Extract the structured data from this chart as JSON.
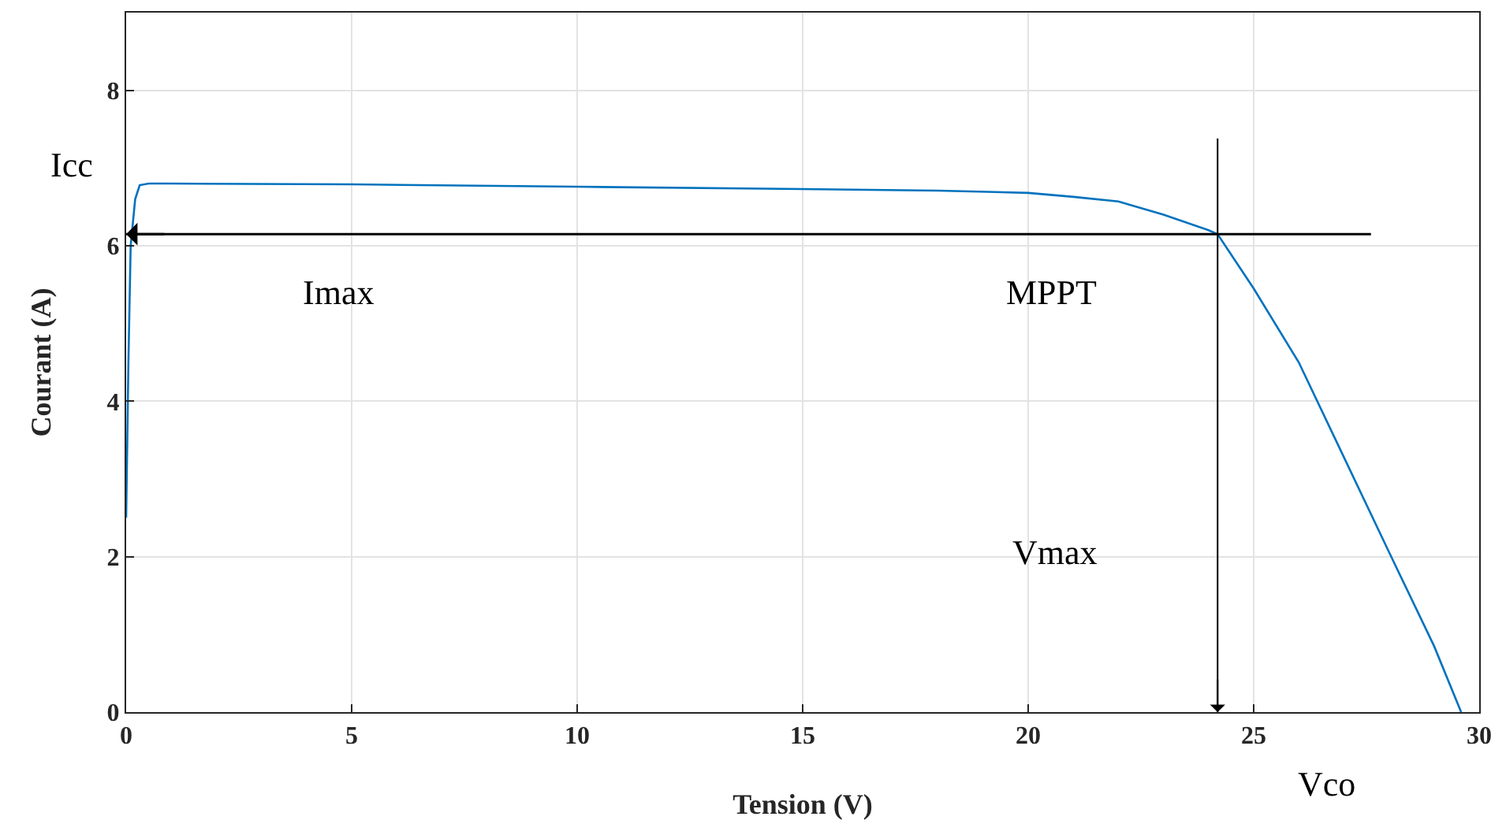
{
  "chart_data": {
    "type": "line",
    "xlabel": "Tension (V)",
    "ylabel": "Courant (A)",
    "xlim": [
      0,
      30
    ],
    "ylim": [
      0,
      9
    ],
    "xticks": [
      0,
      5,
      10,
      15,
      20,
      25,
      30
    ],
    "yticks": [
      0,
      2,
      4,
      6,
      8
    ],
    "grid": true,
    "line_style": "solid",
    "series": [
      {
        "color": "#0072bd",
        "x": [
          0,
          0.05,
          0.1,
          0.2,
          0.3,
          0.5,
          1,
          5,
          10,
          15,
          18,
          20,
          21,
          22,
          23,
          24,
          24.2,
          25,
          26,
          27,
          28,
          29,
          29.6
        ],
        "values": [
          2.5,
          4.5,
          6.0,
          6.6,
          6.78,
          6.8,
          6.8,
          6.79,
          6.76,
          6.73,
          6.71,
          6.68,
          6.63,
          6.57,
          6.4,
          6.2,
          6.15,
          5.45,
          4.5,
          3.28,
          2.06,
          0.85,
          0
        ]
      }
    ],
    "ref_lines": [
      {
        "axis": "y",
        "value": 6.15,
        "color": "#000000"
      },
      {
        "axis": "x",
        "value": 24.2,
        "color": "#000000"
      }
    ],
    "annotations": [
      "Icc",
      "Vco",
      "Imax",
      "MPPT",
      "Vmax"
    ]
  }
}
